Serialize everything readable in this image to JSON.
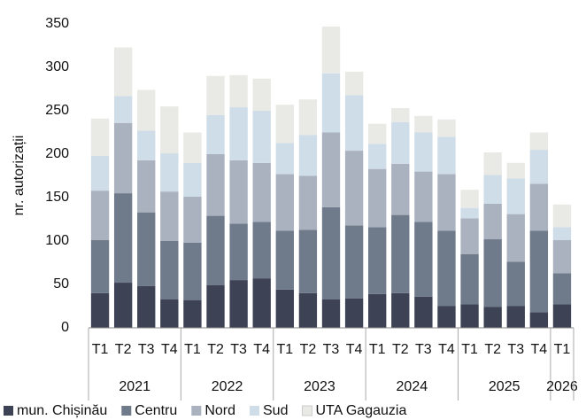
{
  "chart_data": {
    "type": "stacked_bar",
    "y_label": "nr. autorizații",
    "groups": [
      {
        "label": "2021",
        "categories": [
          "T1",
          "T2",
          "T3",
          "T4"
        ]
      },
      {
        "label": "2022",
        "categories": [
          "T1",
          "T2",
          "T3",
          "T4"
        ]
      },
      {
        "label": "2023",
        "categories": [
          "T1",
          "T2",
          "T3",
          "T4"
        ]
      },
      {
        "label": "2024",
        "categories": [
          "T1",
          "T2",
          "T3",
          "T4"
        ]
      },
      {
        "label": "2025",
        "categories": [
          "T1",
          "T2",
          "T3",
          "T4"
        ]
      },
      {
        "label": "2026",
        "categories": [
          "T1"
        ]
      }
    ],
    "series": [
      {
        "name": "mun. Chișinău",
        "color": "#3d4254",
        "values": [
          40,
          52,
          48,
          33,
          32,
          49,
          55,
          57,
          44,
          40,
          33,
          34,
          39,
          40,
          36,
          25,
          27,
          24,
          25,
          18,
          27
        ]
      },
      {
        "name": "Centru",
        "color": "#6f7a8a",
        "values": [
          61,
          103,
          85,
          67,
          66,
          80,
          65,
          65,
          68,
          73,
          106,
          84,
          77,
          90,
          86,
          87,
          58,
          78,
          51,
          94,
          36
        ]
      },
      {
        "name": "Nord",
        "color": "#aab2bf",
        "values": [
          57,
          81,
          60,
          57,
          53,
          71,
          73,
          68,
          65,
          62,
          86,
          86,
          67,
          59,
          58,
          65,
          41,
          41,
          55,
          54,
          38
        ]
      },
      {
        "name": "Sud",
        "color": "#cfdde8",
        "values": [
          40,
          31,
          34,
          44,
          39,
          45,
          61,
          60,
          36,
          47,
          68,
          64,
          29,
          48,
          45,
          43,
          12,
          33,
          41,
          39,
          15
        ]
      },
      {
        "name": "UTA Gagauzia",
        "color": "#e9e9e5",
        "values": [
          43,
          56,
          47,
          54,
          35,
          45,
          37,
          37,
          44,
          41,
          54,
          27,
          23,
          16,
          19,
          20,
          21,
          26,
          18,
          20,
          26
        ]
      }
    ],
    "ylim": [
      0,
      350
    ],
    "yticks": [
      0,
      50,
      100,
      150,
      200,
      250,
      300,
      350
    ],
    "grid": false
  }
}
